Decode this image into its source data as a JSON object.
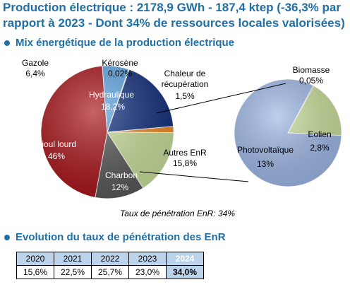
{
  "header": {
    "title": "Production électrique : 2178,9 GWh - 187,4 ktep (-36,3% par rapport à 2023 - Dont 34% de ressources locales valorisées)"
  },
  "section_mix": {
    "label": "Mix énergétique de la production électrique"
  },
  "section_evolution": {
    "label": "Evolution du taux de pénétration des EnR"
  },
  "penetration_note": "Taux de pénétration EnR: 34%",
  "colors": {
    "accent": "#1f6fa8",
    "fioul": "#a50f15",
    "gazole": "#5ba3e0",
    "kerosene": "#1f4e9c",
    "hydraulique": "#0d2b7a",
    "chaleur": "#f08a24",
    "autres_enr": "#c8dd98",
    "charbon": "#555555",
    "photovoltaique": "#9cb6e6",
    "eolien": "#c8dd98"
  },
  "chart_data": [
    {
      "type": "pie",
      "title": "",
      "slices": [
        {
          "name": "Fioul lourd",
          "value": 46,
          "label": "46%",
          "color": "#a50f15"
        },
        {
          "name": "Gazole",
          "value": 6.4,
          "label": "6,4%",
          "color": "#5ba3e0"
        },
        {
          "name": "Kérosène",
          "value": 0.02,
          "label": "0,02%",
          "color": "#1f4e9c"
        },
        {
          "name": "Hydraulique",
          "value": 18.2,
          "label": "18,2%",
          "color": "#0d2b7a"
        },
        {
          "name": "Chaleur de récupération",
          "value": 1.5,
          "label": "1,5%",
          "color": "#f08a24"
        },
        {
          "name": "Autres EnR",
          "value": 15.8,
          "label": "15,8%",
          "color": "#c8dd98"
        },
        {
          "name": "Charbon",
          "value": 12,
          "label": "12%",
          "color": "#555555"
        }
      ]
    },
    {
      "type": "pie",
      "title": "",
      "slices": [
        {
          "name": "Biomasse",
          "value": 0.05,
          "label": "0,05%",
          "color": "#4e8a3a"
        },
        {
          "name": "Eolien",
          "value": 2.8,
          "label": "2,8%",
          "color": "#c8dd98"
        },
        {
          "name": "Photovoltaïque",
          "value": 13,
          "label": "13%",
          "color": "#9cb6e6"
        }
      ]
    },
    {
      "type": "table",
      "columns": [
        "2020",
        "2021",
        "2022",
        "2023",
        "2024"
      ],
      "values": [
        "15,6%",
        "22,5%",
        "25,7%",
        "23,0%",
        "34,0%"
      ],
      "highlight": "2024"
    }
  ]
}
